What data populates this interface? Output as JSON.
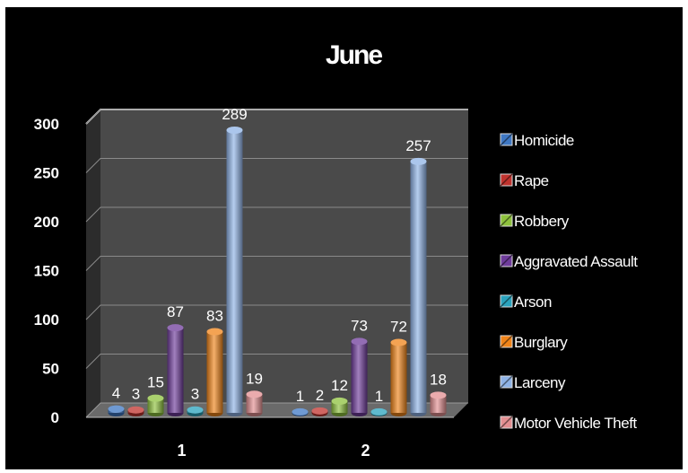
{
  "chart_data": {
    "type": "bar",
    "title": "June",
    "categories": [
      "1",
      "2"
    ],
    "y_ticks": [
      "0",
      "50",
      "100",
      "150",
      "200",
      "250",
      "300"
    ],
    "ylim": [
      0,
      300
    ],
    "grid": true,
    "legend_position": "right",
    "series": [
      {
        "name": "Homicide",
        "values": [
          4,
          1
        ],
        "labels": [
          "4",
          "1"
        ],
        "color": "#3f78c4"
      },
      {
        "name": "Rape",
        "values": [
          3,
          2
        ],
        "labels": [
          "3",
          "2"
        ],
        "color": "#c0332e"
      },
      {
        "name": "Robbery",
        "values": [
          15,
          12
        ],
        "labels": [
          "15",
          "12"
        ],
        "color": "#8ec23d"
      },
      {
        "name": "Aggravated Assault",
        "values": [
          87,
          73
        ],
        "labels": [
          "87",
          "73"
        ],
        "color": "#6f3c9b"
      },
      {
        "name": "Arson",
        "values": [
          3,
          1
        ],
        "labels": [
          "3",
          "1"
        ],
        "color": "#2aa3bd"
      },
      {
        "name": "Burglary",
        "values": [
          83,
          72
        ],
        "labels": [
          "83",
          "72"
        ],
        "color": "#f08419"
      },
      {
        "name": "Larceny",
        "values": [
          289,
          257
        ],
        "labels": [
          "289",
          "257"
        ],
        "color": "#8fb3e6"
      },
      {
        "name": "Motor Vehicle Theft",
        "values": [
          19,
          18
        ],
        "labels": [
          "19",
          "18"
        ],
        "color": "#e38f92"
      }
    ]
  }
}
